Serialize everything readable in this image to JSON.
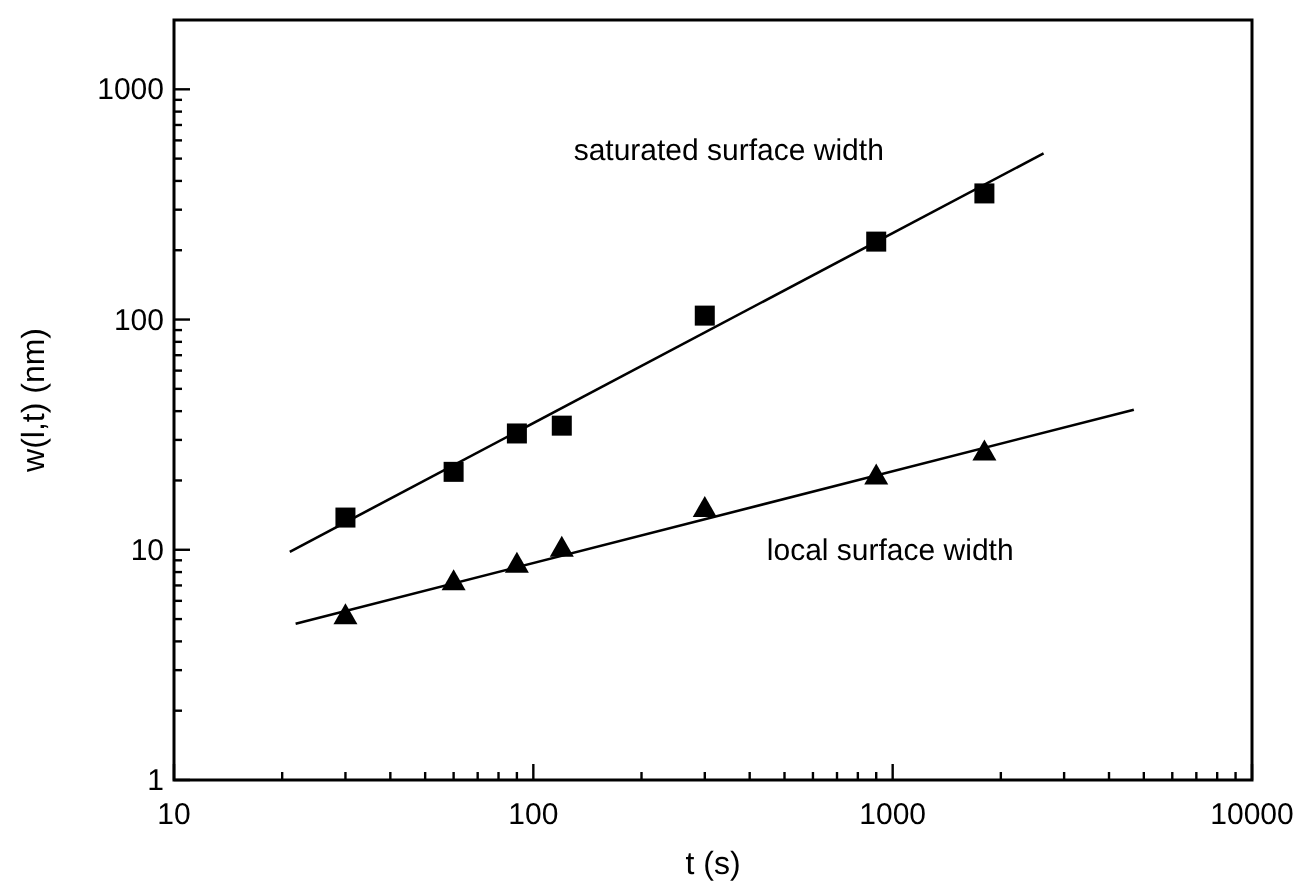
{
  "chart_data": {
    "type": "scatter",
    "xlabel": "t (s)",
    "ylabel": "w(l,t) (nm)",
    "log": "xy",
    "grid": false,
    "xlim": [
      10,
      10000
    ],
    "ylim": [
      1,
      2000
    ],
    "xticks": [
      10,
      {
        "value": 20,
        "label": null
      },
      {
        "value": 30,
        "label": null
      },
      {
        "value": 40,
        "label": null
      },
      {
        "value": 50,
        "label": null
      },
      {
        "value": 60,
        "label": null
      },
      {
        "value": 70,
        "label": null
      },
      {
        "value": 80,
        "label": null
      },
      {
        "value": 90,
        "label": null
      },
      100,
      {
        "value": 200,
        "label": null
      },
      {
        "value": 300,
        "label": null
      },
      {
        "value": 400,
        "label": null
      },
      {
        "value": 500,
        "label": null
      },
      {
        "value": 600,
        "label": null
      },
      {
        "value": 700,
        "label": null
      },
      {
        "value": 800,
        "label": null
      },
      {
        "value": 900,
        "label": null
      },
      1000,
      {
        "value": 2000,
        "label": null
      },
      {
        "value": 3000,
        "label": null
      },
      {
        "value": 4000,
        "label": null
      },
      {
        "value": 5000,
        "label": null
      },
      {
        "value": 6000,
        "label": null
      },
      {
        "value": 7000,
        "label": null
      },
      {
        "value": 8000,
        "label": null
      },
      {
        "value": 9000,
        "label": null
      },
      10000
    ],
    "yticks": [
      1,
      {
        "value": 2,
        "label": null
      },
      {
        "value": 3,
        "label": null
      },
      {
        "value": 4,
        "label": null
      },
      {
        "value": 5,
        "label": null
      },
      {
        "value": 6,
        "label": null
      },
      {
        "value": 7,
        "label": null
      },
      {
        "value": 8,
        "label": null
      },
      {
        "value": 9,
        "label": null
      },
      10,
      {
        "value": 20,
        "label": null
      },
      {
        "value": 30,
        "label": null
      },
      {
        "value": 40,
        "label": null
      },
      {
        "value": 50,
        "label": null
      },
      {
        "value": 60,
        "label": null
      },
      {
        "value": 70,
        "label": null
      },
      {
        "value": 80,
        "label": null
      },
      {
        "value": 90,
        "label": null
      },
      100,
      {
        "value": 200,
        "label": null
      },
      {
        "value": 300,
        "label": null
      },
      {
        "value": 400,
        "label": null
      },
      {
        "value": 500,
        "label": null
      },
      {
        "value": 600,
        "label": null
      },
      {
        "value": 700,
        "label": null
      },
      {
        "value": 800,
        "label": null
      },
      {
        "value": 900,
        "label": null
      },
      1000
    ],
    "series": [
      {
        "name": "saturated surface width",
        "marker": "square",
        "color": "#000000",
        "x": [
          30,
          60,
          90,
          120,
          300,
          900,
          1800
        ],
        "values": [
          13.8,
          21.8,
          32,
          34.6,
          104,
          218,
          353
        ]
      },
      {
        "name": "local surface width",
        "marker": "triangle",
        "color": "#000000",
        "x": [
          30,
          60,
          90,
          120,
          300,
          900,
          1800
        ],
        "values": [
          5.2,
          7.3,
          8.7,
          10.2,
          15.2,
          21,
          26.7
        ]
      },
      {
        "type": "line",
        "color": "#000000",
        "line_style": "solid",
        "x": [
          21,
          2630
        ],
        "values": [
          9.8,
          527
        ]
      },
      {
        "type": "line",
        "color": "#000000",
        "line_style": "solid",
        "x": [
          21.8,
          4690
        ],
        "values": [
          4.77,
          40.6
        ]
      }
    ]
  }
}
